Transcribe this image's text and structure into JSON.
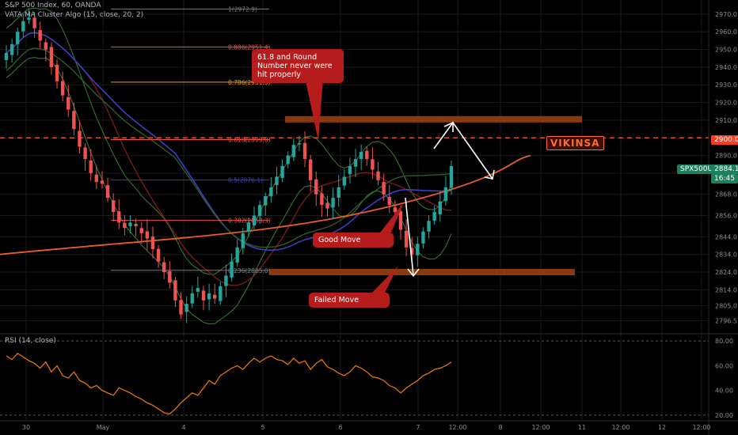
{
  "header": {
    "symbol_line": "S&P 500 Index, 60, OANDA",
    "indicator_line": "VATA MA Cluster Algo (15, close, 20, 2)",
    "rsi_line": "RSI (14, close)"
  },
  "watermark": "VIKINSA",
  "annotations": {
    "callout_top": "61.8 and Round Number never were hit properly",
    "good_move": "Good Move",
    "failed_move": "Failed Move"
  },
  "price_tags": {
    "ref_2900": "2900.0",
    "current_symbol": "SPX500USD",
    "current_price": "2884.1",
    "countdown": "16:45"
  },
  "colors": {
    "background": "#000000",
    "up_candle": "#26a69a",
    "down_candle": "#ef5350",
    "zone": "#8b3a0f",
    "callout": "#b71c1c",
    "ma_orange": "#e65c2c",
    "ma_blue": "#3d3fc4",
    "ma_green": "#3f7d31",
    "rsi_line": "#f57c00",
    "dashed_ref": "#ff5a36",
    "grid": "#1a1a1a"
  },
  "chart_data": {
    "type": "candlestick",
    "x_axis": {
      "tick_labels": [
        "30",
        "May",
        "4",
        "5",
        "6",
        "7",
        "12:00",
        "8",
        "12:00",
        "11",
        "12:00",
        "12",
        "12:00"
      ]
    },
    "price_axis": {
      "range": [
        2790,
        2978
      ],
      "tick_labels": [
        "2970.0",
        "2960.0",
        "2950.0",
        "2940.0",
        "2930.0",
        "2920.0",
        "2910.0",
        "2900.0",
        "2890.0",
        "2880.0",
        "2868.0",
        "2856.0",
        "2844.0",
        "2834.0",
        "2824.0",
        "2814.0",
        "2805.0",
        "2796.5"
      ]
    },
    "fib_levels": [
      {
        "label": "1(2972.9)",
        "value": 2972.9
      },
      {
        "label": "0.886(2951.4)",
        "value": 2951.4
      },
      {
        "label": "0.786(2931.5)",
        "value": 2931.5
      },
      {
        "label": "0.618(2899.0)",
        "value": 2899.0
      },
      {
        "label": "0.5(2876.1)",
        "value": 2876.1
      },
      {
        "label": "0.382(2853.3)",
        "value": 2853.3
      },
      {
        "label": "0.236(2825.0)",
        "value": 2825.0
      }
    ],
    "zones": [
      {
        "name": "upper-zone",
        "value": 2910.5
      },
      {
        "name": "lower-zone",
        "value": 2824.0
      }
    ],
    "reference_line": 2900.0,
    "close_series": [
      2948,
      2953,
      2960,
      2966,
      2968,
      2962,
      2955,
      2950,
      2940,
      2932,
      2924,
      2916,
      2905,
      2895,
      2888,
      2880,
      2875,
      2874,
      2866,
      2858,
      2852,
      2849,
      2852,
      2850,
      2846,
      2843,
      2837,
      2830,
      2824,
      2818,
      2808,
      2800,
      2806,
      2812,
      2815,
      2808,
      2812,
      2809,
      2816,
      2822,
      2830,
      2838,
      2846,
      2852,
      2856,
      2862,
      2867,
      2872,
      2878,
      2884,
      2890,
      2896,
      2897,
      2888,
      2876,
      2868,
      2862,
      2860,
      2866,
      2872,
      2878,
      2884,
      2888,
      2892,
      2888,
      2882,
      2876,
      2868,
      2862,
      2858,
      2848,
      2838,
      2834,
      2840,
      2847,
      2853,
      2858,
      2864,
      2872,
      2884
    ],
    "rsi": {
      "range": [
        18,
        82
      ],
      "tick_labels": [
        "80.00",
        "60.00",
        "40.00",
        "20.00"
      ],
      "values": [
        68,
        65,
        70,
        67,
        64,
        62,
        58,
        63,
        55,
        60,
        52,
        50,
        55,
        48,
        46,
        42,
        44,
        40,
        38,
        36,
        42,
        40,
        38,
        35,
        33,
        30,
        28,
        25,
        22,
        21,
        25,
        30,
        34,
        38,
        36,
        42,
        48,
        45,
        52,
        55,
        58,
        60,
        57,
        62,
        66,
        63,
        66,
        68,
        65,
        64,
        61,
        66,
        62,
        64,
        57,
        62,
        65,
        59,
        57,
        54,
        52,
        55,
        60,
        58,
        55,
        51,
        50,
        48,
        44,
        42,
        38,
        42,
        45,
        48,
        52,
        54,
        57,
        58,
        60,
        63
      ]
    },
    "grid": true
  }
}
